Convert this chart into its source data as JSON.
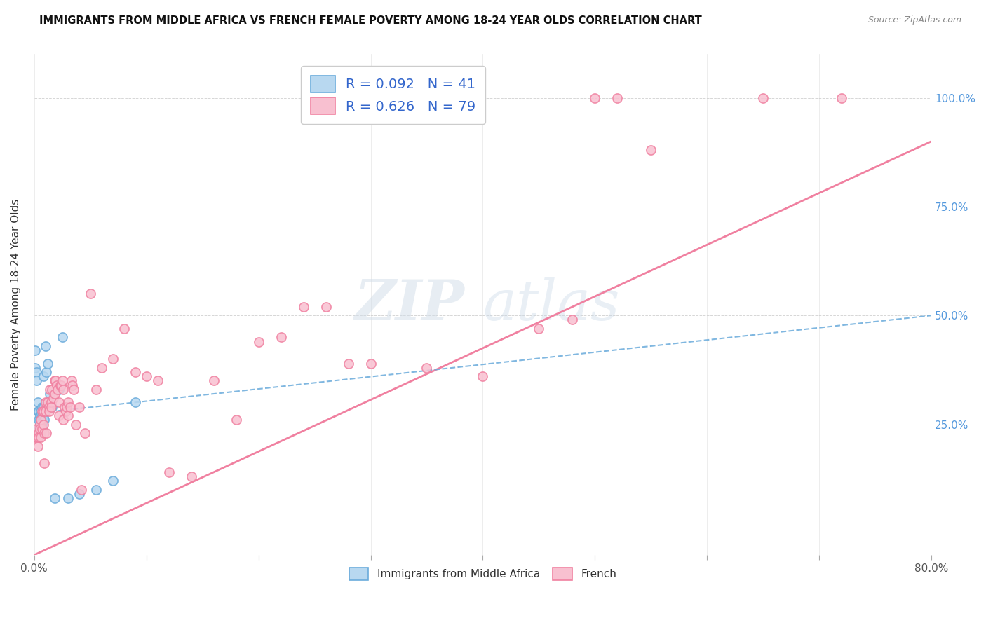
{
  "title": "IMMIGRANTS FROM MIDDLE AFRICA VS FRENCH FEMALE POVERTY AMONG 18-24 YEAR OLDS CORRELATION CHART",
  "source": "Source: ZipAtlas.com",
  "ylabel": "Female Poverty Among 18-24 Year Olds",
  "ytick_labels": [
    "25.0%",
    "50.0%",
    "75.0%",
    "100.0%"
  ],
  "ytick_values": [
    0.25,
    0.5,
    0.75,
    1.0
  ],
  "xlim": [
    0.0,
    0.8
  ],
  "ylim": [
    -0.05,
    1.1
  ],
  "legend_r_blue": "R = 0.092",
  "legend_n_blue": "N = 41",
  "legend_r_pink": "R = 0.626",
  "legend_n_pink": "N = 79",
  "legend_label_blue": "Immigrants from Middle Africa",
  "legend_label_pink": "French",
  "blue_color": "#6aabdb",
  "pink_color": "#f080a0",
  "blue_face": "#b8d8f0",
  "pink_face": "#f8c0d0",
  "watermark_zip": "ZIP",
  "watermark_atlas": "atlas",
  "pink_trend_x0": 0.0,
  "pink_trend_y0": -0.05,
  "pink_trend_x1": 0.8,
  "pink_trend_y1": 0.9,
  "blue_trend_x0": 0.0,
  "blue_trend_y0": 0.275,
  "blue_trend_x1": 0.8,
  "blue_trend_y1": 0.5,
  "blue_scatter_x": [
    0.001,
    0.001,
    0.002,
    0.002,
    0.003,
    0.003,
    0.004,
    0.004,
    0.004,
    0.005,
    0.005,
    0.005,
    0.005,
    0.006,
    0.006,
    0.006,
    0.006,
    0.007,
    0.007,
    0.007,
    0.007,
    0.008,
    0.008,
    0.008,
    0.009,
    0.009,
    0.01,
    0.011,
    0.012,
    0.013,
    0.014,
    0.016,
    0.018,
    0.02,
    0.022,
    0.025,
    0.03,
    0.04,
    0.055,
    0.07,
    0.09
  ],
  "blue_scatter_y": [
    0.38,
    0.42,
    0.37,
    0.35,
    0.3,
    0.28,
    0.28,
    0.26,
    0.24,
    0.27,
    0.26,
    0.25,
    0.24,
    0.28,
    0.27,
    0.25,
    0.23,
    0.29,
    0.27,
    0.25,
    0.24,
    0.36,
    0.29,
    0.27,
    0.28,
    0.26,
    0.43,
    0.37,
    0.39,
    0.3,
    0.32,
    0.29,
    0.08,
    0.33,
    0.33,
    0.45,
    0.08,
    0.09,
    0.1,
    0.12,
    0.3
  ],
  "pink_scatter_x": [
    0.001,
    0.002,
    0.002,
    0.003,
    0.004,
    0.004,
    0.005,
    0.005,
    0.006,
    0.006,
    0.007,
    0.007,
    0.008,
    0.008,
    0.009,
    0.009,
    0.01,
    0.01,
    0.011,
    0.012,
    0.013,
    0.013,
    0.014,
    0.015,
    0.015,
    0.016,
    0.017,
    0.018,
    0.018,
    0.019,
    0.02,
    0.021,
    0.022,
    0.022,
    0.023,
    0.024,
    0.025,
    0.026,
    0.026,
    0.027,
    0.028,
    0.029,
    0.03,
    0.03,
    0.032,
    0.033,
    0.034,
    0.035,
    0.037,
    0.04,
    0.042,
    0.045,
    0.05,
    0.055,
    0.06,
    0.07,
    0.08,
    0.09,
    0.1,
    0.11,
    0.12,
    0.14,
    0.16,
    0.18,
    0.2,
    0.22,
    0.24,
    0.26,
    0.28,
    0.3,
    0.35,
    0.4,
    0.45,
    0.48,
    0.5,
    0.52,
    0.55,
    0.65,
    0.72
  ],
  "pink_scatter_y": [
    0.22,
    0.24,
    0.22,
    0.2,
    0.23,
    0.22,
    0.25,
    0.24,
    0.26,
    0.22,
    0.28,
    0.24,
    0.28,
    0.25,
    0.16,
    0.23,
    0.28,
    0.3,
    0.23,
    0.3,
    0.29,
    0.28,
    0.33,
    0.3,
    0.29,
    0.33,
    0.31,
    0.32,
    0.35,
    0.35,
    0.34,
    0.33,
    0.3,
    0.27,
    0.34,
    0.34,
    0.35,
    0.33,
    0.26,
    0.29,
    0.28,
    0.29,
    0.3,
    0.27,
    0.29,
    0.35,
    0.34,
    0.33,
    0.25,
    0.29,
    0.1,
    0.23,
    0.55,
    0.33,
    0.38,
    0.4,
    0.47,
    0.37,
    0.36,
    0.35,
    0.14,
    0.13,
    0.35,
    0.26,
    0.44,
    0.45,
    0.52,
    0.52,
    0.39,
    0.39,
    0.38,
    0.36,
    0.47,
    0.49,
    1.0,
    1.0,
    0.88,
    1.0,
    1.0
  ]
}
